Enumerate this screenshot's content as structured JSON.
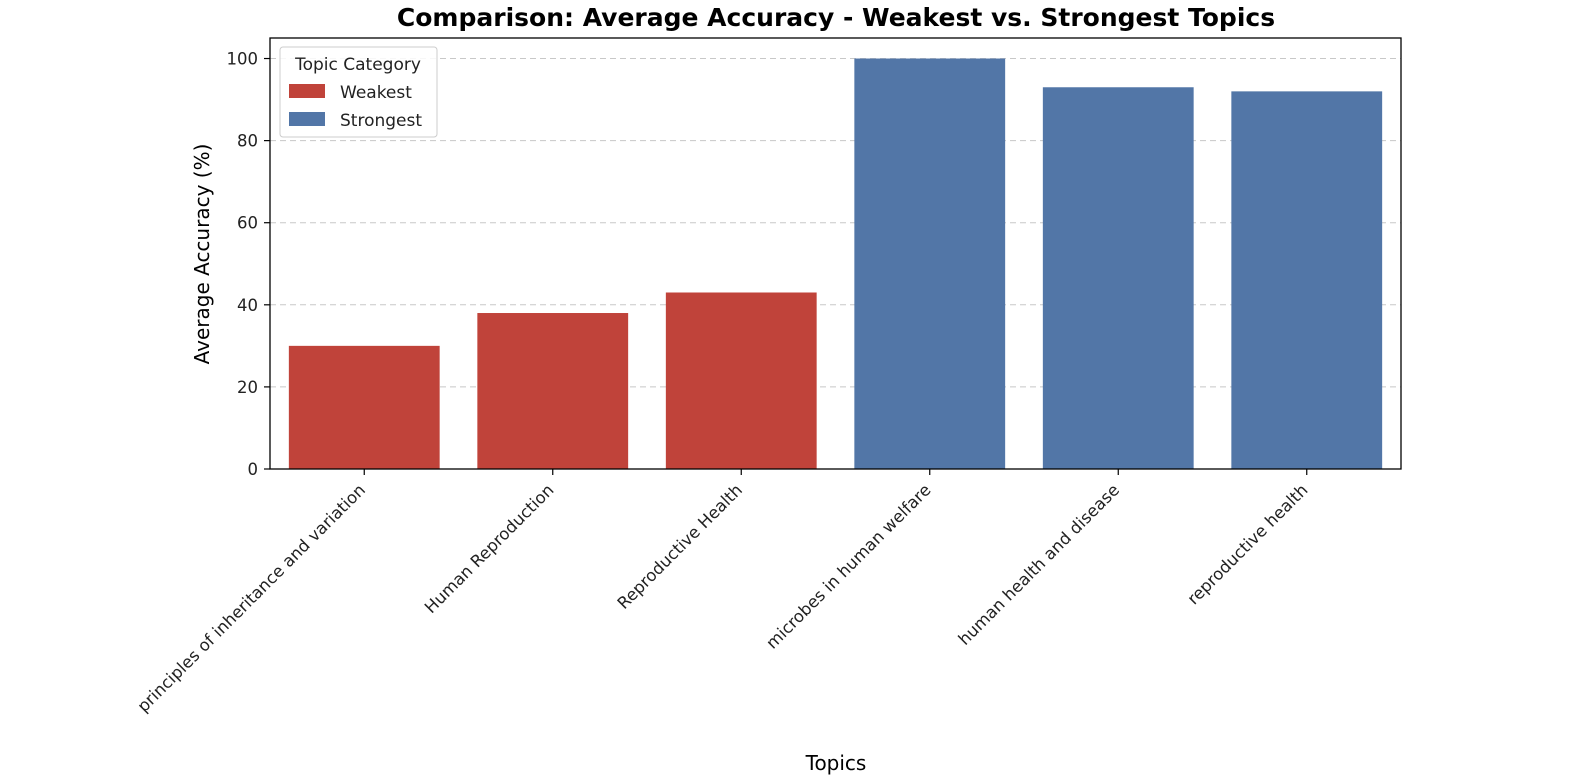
{
  "chart_data": {
    "type": "bar",
    "title": "Comparison: Average Accuracy - Weakest vs. Strongest Topics",
    "xlabel": "Topics",
    "ylabel": "Average Accuracy (%)",
    "ylim": [
      0,
      105
    ],
    "yticks": [
      0,
      20,
      40,
      60,
      80,
      100
    ],
    "grid": "y-dashed",
    "legend": {
      "title": "Topic Category",
      "placement": "top-left",
      "entries": [
        {
          "label": "Weakest",
          "color": "#c0433a"
        },
        {
          "label": "Strongest",
          "color": "#5276a7"
        }
      ]
    },
    "bars": [
      {
        "category": "principles of inheritance and variation",
        "value": 30,
        "group": "Weakest"
      },
      {
        "category": "Human Reproduction",
        "value": 38,
        "group": "Weakest"
      },
      {
        "category": "Reproductive Health",
        "value": 43,
        "group": "Weakest"
      },
      {
        "category": "microbes in human welfare",
        "value": 100,
        "group": "Strongest"
      },
      {
        "category": "human health and disease",
        "value": 93,
        "group": "Strongest"
      },
      {
        "category": "reproductive health",
        "value": 92,
        "group": "Strongest"
      }
    ]
  }
}
